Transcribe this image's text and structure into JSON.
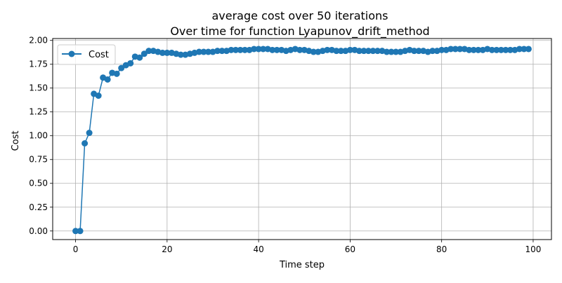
{
  "chart_data": {
    "type": "line",
    "title": "average cost over 50 iterations",
    "subtitle": "Over time for function Lyapunov_drift_method",
    "xlabel": "Time step",
    "ylabel": "Cost",
    "xlim": [
      -5,
      104
    ],
    "ylim": [
      -0.09,
      2.02
    ],
    "x_ticks": [
      0,
      20,
      40,
      60,
      80,
      100
    ],
    "y_ticks": [
      0.0,
      0.25,
      0.5,
      0.75,
      1.0,
      1.25,
      1.5,
      1.75,
      2.0
    ],
    "x_tick_labels": [
      "0",
      "20",
      "40",
      "60",
      "80",
      "100"
    ],
    "y_tick_labels": [
      "0.00",
      "0.25",
      "0.50",
      "0.75",
      "1.00",
      "1.25",
      "1.50",
      "1.75",
      "2.00"
    ],
    "grid": true,
    "legend_position": "top-left",
    "series": [
      {
        "name": "Cost",
        "color": "#1f77b4",
        "marker": "circle",
        "x": [
          0,
          1,
          2,
          3,
          4,
          5,
          6,
          7,
          8,
          9,
          10,
          11,
          12,
          13,
          14,
          15,
          16,
          17,
          18,
          19,
          20,
          21,
          22,
          23,
          24,
          25,
          26,
          27,
          28,
          29,
          30,
          31,
          32,
          33,
          34,
          35,
          36,
          37,
          38,
          39,
          40,
          41,
          42,
          43,
          44,
          45,
          46,
          47,
          48,
          49,
          50,
          51,
          52,
          53,
          54,
          55,
          56,
          57,
          58,
          59,
          60,
          61,
          62,
          63,
          64,
          65,
          66,
          67,
          68,
          69,
          70,
          71,
          72,
          73,
          74,
          75,
          76,
          77,
          78,
          79,
          80,
          81,
          82,
          83,
          84,
          85,
          86,
          87,
          88,
          89,
          90,
          91,
          92,
          93,
          94,
          95,
          96,
          97,
          98,
          99
        ],
        "y": [
          0.0,
          0.0,
          0.92,
          1.03,
          1.44,
          1.42,
          1.61,
          1.59,
          1.66,
          1.65,
          1.71,
          1.74,
          1.76,
          1.83,
          1.82,
          1.86,
          1.89,
          1.89,
          1.88,
          1.87,
          1.87,
          1.87,
          1.86,
          1.85,
          1.85,
          1.86,
          1.87,
          1.88,
          1.88,
          1.88,
          1.88,
          1.89,
          1.89,
          1.89,
          1.9,
          1.9,
          1.9,
          1.9,
          1.9,
          1.91,
          1.91,
          1.91,
          1.91,
          1.9,
          1.9,
          1.9,
          1.89,
          1.9,
          1.91,
          1.9,
          1.9,
          1.89,
          1.88,
          1.88,
          1.89,
          1.9,
          1.9,
          1.89,
          1.89,
          1.89,
          1.9,
          1.9,
          1.89,
          1.89,
          1.89,
          1.89,
          1.89,
          1.89,
          1.88,
          1.88,
          1.88,
          1.88,
          1.89,
          1.9,
          1.89,
          1.89,
          1.89,
          1.88,
          1.89,
          1.89,
          1.9,
          1.9,
          1.91,
          1.91,
          1.91,
          1.91,
          1.9,
          1.9,
          1.9,
          1.9,
          1.91,
          1.9,
          1.9,
          1.9,
          1.9,
          1.9,
          1.9,
          1.91,
          1.91,
          1.91
        ]
      }
    ]
  }
}
